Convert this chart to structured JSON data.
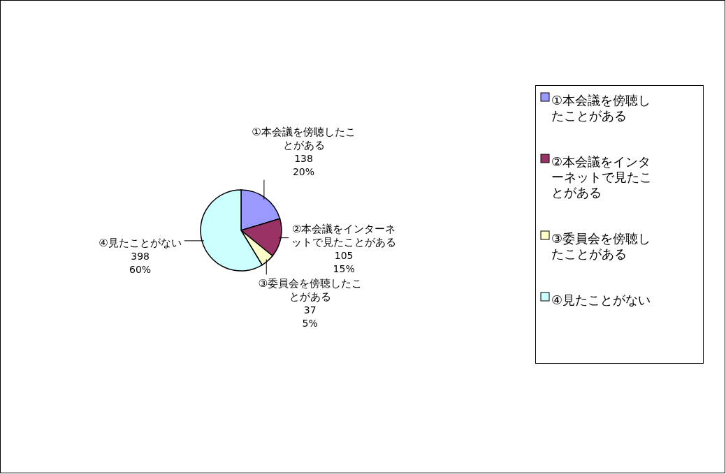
{
  "chart_data": {
    "type": "pie",
    "categories": [
      "①本会議を傍聴したことがある",
      "②本会議をインターネットで見たことがある",
      "③委員会を傍聴したことがある",
      "④見たことがない"
    ],
    "values": [
      138,
      105,
      37,
      398
    ],
    "colors": [
      "#9999ff",
      "#993366",
      "#ffffcc",
      "#ccffff"
    ],
    "value_labels": [
      "138\n20%",
      "105\n15%",
      "37\n5%",
      "398\n60%"
    ],
    "legend": "right"
  }
}
